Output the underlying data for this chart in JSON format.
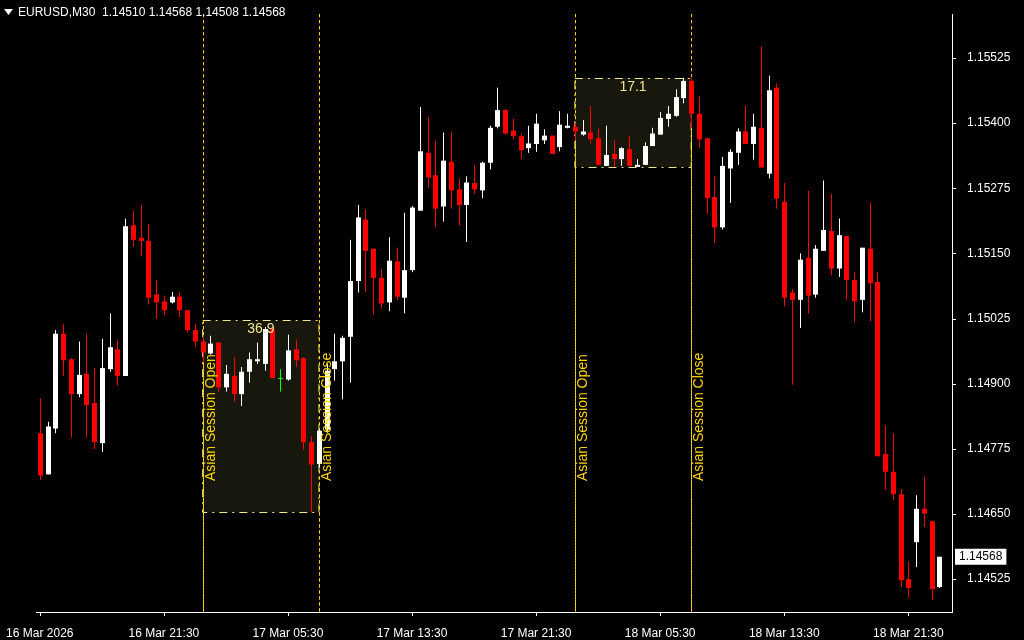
{
  "chart_data": {
    "type": "candlestick",
    "title": "EURUSD,M30  1.14510 1.14568 1.14508 1.14568",
    "x": [
      "2026-03-16T13:30",
      "2026-03-16T14:00",
      "2026-03-16T14:30",
      "2026-03-16T15:00",
      "2026-03-16T15:30",
      "2026-03-16T16:00",
      "2026-03-16T16:30",
      "2026-03-16T17:00",
      "2026-03-16T17:30",
      "2026-03-16T18:00",
      "2026-03-16T18:30",
      "2026-03-16T19:00",
      "2026-03-16T19:30",
      "2026-03-16T20:00",
      "2026-03-16T20:30",
      "2026-03-16T21:00",
      "2026-03-16T21:30",
      "2026-03-16T22:00",
      "2026-03-16T22:30",
      "2026-03-16T23:00",
      "2026-03-16T23:30",
      "2026-03-17T00:00",
      "2026-03-17T00:30",
      "2026-03-17T01:00",
      "2026-03-17T01:30",
      "2026-03-17T02:00",
      "2026-03-17T02:30",
      "2026-03-17T03:00",
      "2026-03-17T03:30",
      "2026-03-17T04:00",
      "2026-03-17T04:30",
      "2026-03-17T05:00",
      "2026-03-17T05:30",
      "2026-03-17T06:00",
      "2026-03-17T06:30",
      "2026-03-17T07:00",
      "2026-03-17T07:30",
      "2026-03-17T08:00",
      "2026-03-17T08:30",
      "2026-03-17T09:00",
      "2026-03-17T09:30",
      "2026-03-17T10:00",
      "2026-03-17T10:30",
      "2026-03-17T11:00",
      "2026-03-17T11:30",
      "2026-03-17T12:00",
      "2026-03-17T12:30",
      "2026-03-17T13:00",
      "2026-03-17T13:30",
      "2026-03-17T14:00",
      "2026-03-17T14:30",
      "2026-03-17T15:00",
      "2026-03-17T15:30",
      "2026-03-17T16:00",
      "2026-03-17T16:30",
      "2026-03-17T17:00",
      "2026-03-17T17:30",
      "2026-03-17T18:00",
      "2026-03-17T18:30",
      "2026-03-17T19:00",
      "2026-03-17T19:30",
      "2026-03-17T20:00",
      "2026-03-17T20:30",
      "2026-03-17T21:00",
      "2026-03-17T21:30",
      "2026-03-17T22:00",
      "2026-03-17T22:30",
      "2026-03-17T23:00",
      "2026-03-17T23:30",
      "2026-03-18T00:00",
      "2026-03-18T00:30",
      "2026-03-18T01:00",
      "2026-03-18T01:30",
      "2026-03-18T02:00",
      "2026-03-18T02:30",
      "2026-03-18T03:00",
      "2026-03-18T03:30",
      "2026-03-18T04:00",
      "2026-03-18T04:30",
      "2026-03-18T05:00",
      "2026-03-18T05:30",
      "2026-03-18T06:00",
      "2026-03-18T06:30",
      "2026-03-18T07:00",
      "2026-03-18T07:30",
      "2026-03-18T08:00",
      "2026-03-18T08:30",
      "2026-03-18T09:00",
      "2026-03-18T09:30",
      "2026-03-18T10:00",
      "2026-03-18T10:30",
      "2026-03-18T11:00",
      "2026-03-18T11:30",
      "2026-03-18T12:00",
      "2026-03-18T12:30",
      "2026-03-18T13:00",
      "2026-03-18T13:30",
      "2026-03-18T14:00",
      "2026-03-18T14:30",
      "2026-03-18T15:00",
      "2026-03-18T15:30",
      "2026-03-18T16:00",
      "2026-03-18T16:30",
      "2026-03-18T17:00",
      "2026-03-18T17:30",
      "2026-03-18T18:00",
      "2026-03-18T18:30",
      "2026-03-18T19:00",
      "2026-03-18T19:30",
      "2026-03-18T20:00",
      "2026-03-18T20:30",
      "2026-03-18T21:00",
      "2026-03-18T21:30",
      "2026-03-18T22:00",
      "2026-03-18T22:30",
      "2026-03-18T23:00",
      "2026-03-18T23:30"
    ],
    "ohlc": [
      [
        1.14805,
        1.14872,
        1.14715,
        1.14724
      ],
      [
        1.14726,
        1.14827,
        1.14726,
        1.14818
      ],
      [
        1.14814,
        1.15003,
        1.14805,
        1.14996
      ],
      [
        1.14996,
        1.15015,
        1.14915,
        1.14945
      ],
      [
        1.14947,
        1.14949,
        1.14797,
        1.1488
      ],
      [
        1.1488,
        1.14981,
        1.14874,
        1.14917
      ],
      [
        1.14919,
        1.14996,
        1.14797,
        1.14859
      ],
      [
        1.14863,
        1.1493,
        1.14775,
        1.14788
      ],
      [
        1.14786,
        1.14986,
        1.14769,
        1.1493
      ],
      [
        1.14928,
        1.15035,
        1.14923,
        1.1497
      ],
      [
        1.14966,
        1.14983,
        1.14896,
        1.14915
      ],
      [
        1.14915,
        1.15217,
        1.14915,
        1.15202
      ],
      [
        1.15204,
        1.15232,
        1.15163,
        1.15176
      ],
      [
        1.1518,
        1.15243,
        1.15144,
        1.15174
      ],
      [
        1.15174,
        1.15206,
        1.15052,
        1.15065
      ],
      [
        1.15071,
        1.15099,
        1.15024,
        1.15056
      ],
      [
        1.15058,
        1.15069,
        1.15031,
        1.15041
      ],
      [
        1.15056,
        1.15076,
        1.15054,
        1.15067
      ],
      [
        1.15067,
        1.15076,
        1.15028,
        1.15041
      ],
      [
        1.15041,
        1.15041,
        1.14998,
        1.15003
      ],
      [
        1.15003,
        1.15015,
        1.14971,
        1.14981
      ],
      [
        1.14981,
        1.1499,
        1.14941,
        1.1496
      ],
      [
        1.14958,
        1.14992,
        1.14956,
        1.14977
      ],
      [
        1.14979,
        1.14979,
        1.14885,
        1.14893
      ],
      [
        1.14893,
        1.14936,
        1.14885,
        1.14919
      ],
      [
        1.14915,
        1.14951,
        1.14865,
        1.1488
      ],
      [
        1.1488,
        1.14932,
        1.14857,
        1.14923
      ],
      [
        1.14923,
        1.1496,
        1.14902,
        1.14947
      ],
      [
        1.14943,
        1.14979,
        1.14938,
        1.14947
      ],
      [
        1.14938,
        1.15009,
        1.14925,
        1.15005
      ],
      [
        1.15005,
        1.15007,
        1.14911,
        1.14911
      ],
      [
        1.14911,
        1.14928,
        1.14885,
        1.14911
      ],
      [
        1.14908,
        1.14994,
        1.14906,
        1.14964
      ],
      [
        1.14966,
        1.14985,
        1.14932,
        1.14945
      ],
      [
        1.14949,
        1.14951,
        1.14773,
        1.14788
      ],
      [
        1.14788,
        1.14799,
        1.14653,
        1.14745
      ],
      [
        1.14746,
        1.14812,
        1.14739,
        1.1481
      ],
      [
        1.14812,
        1.14938,
        1.14806,
        1.14925
      ],
      [
        1.14928,
        1.14996,
        1.14906,
        1.14943
      ],
      [
        1.14943,
        1.14992,
        1.1487,
        1.14988
      ],
      [
        1.1499,
        1.15176,
        1.14902,
        1.15097
      ],
      [
        1.15097,
        1.15243,
        1.15075,
        1.15219
      ],
      [
        1.15215,
        1.15234,
        1.15076,
        1.15155
      ],
      [
        1.15159,
        1.15159,
        1.15033,
        1.15103
      ],
      [
        1.15103,
        1.1512,
        1.15046,
        1.15054
      ],
      [
        1.15056,
        1.15181,
        1.15039,
        1.15136
      ],
      [
        1.15135,
        1.15161,
        1.1506,
        1.15067
      ],
      [
        1.15065,
        1.15228,
        1.15035,
        1.15118
      ],
      [
        1.15118,
        1.15241,
        1.15114,
        1.15238
      ],
      [
        1.15232,
        1.15431,
        1.15232,
        1.15346
      ],
      [
        1.15343,
        1.15412,
        1.15275,
        1.15296
      ],
      [
        1.153,
        1.15367,
        1.152,
        1.15236
      ],
      [
        1.1524,
        1.15382,
        1.15211,
        1.15328
      ],
      [
        1.15326,
        1.15384,
        1.15236,
        1.15271
      ],
      [
        1.15273,
        1.15294,
        1.15204,
        1.15243
      ],
      [
        1.15243,
        1.15298,
        1.15172,
        1.15286
      ],
      [
        1.15285,
        1.1532,
        1.15264,
        1.15273
      ],
      [
        1.15271,
        1.15326,
        1.15256,
        1.15324
      ],
      [
        1.15324,
        1.15395,
        1.15311,
        1.15391
      ],
      [
        1.15393,
        1.15468,
        1.1539,
        1.15425
      ],
      [
        1.15425,
        1.15427,
        1.15378,
        1.1538
      ],
      [
        1.15386,
        1.15408,
        1.15369,
        1.15375
      ],
      [
        1.15375,
        1.1538,
        1.15331,
        1.15348
      ],
      [
        1.15352,
        1.15395,
        1.15343,
        1.15361
      ],
      [
        1.1536,
        1.15418,
        1.15345,
        1.15399
      ],
      [
        1.15367,
        1.15388,
        1.1536,
        1.15376
      ],
      [
        1.15376,
        1.15376,
        1.15341,
        1.15341
      ],
      [
        1.15354,
        1.15423,
        1.15346,
        1.15397
      ],
      [
        1.15391,
        1.15418,
        1.1539,
        1.15395
      ],
      [
        1.15393,
        1.15401,
        1.15367,
        1.15384
      ],
      [
        1.15378,
        1.15406,
        1.15376,
        1.15384
      ],
      [
        1.15382,
        1.15433,
        1.15361,
        1.15369
      ],
      [
        1.15371,
        1.1539,
        1.1532,
        1.1532
      ],
      [
        1.15318,
        1.15395,
        1.15318,
        1.15339
      ],
      [
        1.15341,
        1.15367,
        1.15316,
        1.15331
      ],
      [
        1.15331,
        1.15354,
        1.15318,
        1.15352
      ],
      [
        1.1535,
        1.15376,
        1.15318,
        1.15318
      ],
      [
        1.15316,
        1.15331,
        1.15316,
        1.1532
      ],
      [
        1.1532,
        1.15363,
        1.1532,
        1.15356
      ],
      [
        1.15356,
        1.15391,
        1.15356,
        1.1538
      ],
      [
        1.15378,
        1.15421,
        1.15378,
        1.1541
      ],
      [
        1.15408,
        1.15433,
        1.15393,
        1.15418
      ],
      [
        1.15414,
        1.15465,
        1.15412,
        1.1545
      ],
      [
        1.15448,
        1.15487,
        1.15438,
        1.15481
      ],
      [
        1.15481,
        1.15487,
        1.1539,
        1.15418
      ],
      [
        1.15418,
        1.15451,
        1.15352,
        1.15369
      ],
      [
        1.15371,
        1.15371,
        1.15226,
        1.15256
      ],
      [
        1.15258,
        1.15298,
        1.1517,
        1.152
      ],
      [
        1.152,
        1.15335,
        1.15196,
        1.15318
      ],
      [
        1.15313,
        1.1535,
        1.15247,
        1.15345
      ],
      [
        1.15343,
        1.1539,
        1.1532,
        1.15384
      ],
      [
        1.15384,
        1.15433,
        1.1536,
        1.1536
      ],
      [
        1.1536,
        1.15418,
        1.1533,
        1.15393
      ],
      [
        1.15391,
        1.15547,
        1.15315,
        1.15315
      ],
      [
        1.15303,
        1.15491,
        1.15294,
        1.15463
      ],
      [
        1.15468,
        1.15476,
        1.15236,
        1.15255
      ],
      [
        1.15249,
        1.15285,
        1.15048,
        1.15065
      ],
      [
        1.15075,
        1.15082,
        1.14898,
        1.15061
      ],
      [
        1.15061,
        1.1515,
        1.15007,
        1.15138
      ],
      [
        1.15142,
        1.1527,
        1.15035,
        1.15069
      ],
      [
        1.15071,
        1.15166,
        1.15065,
        1.15159
      ],
      [
        1.15155,
        1.1529,
        1.15155,
        1.15195
      ],
      [
        1.15193,
        1.15264,
        1.15108,
        1.15121
      ],
      [
        1.15121,
        1.15217,
        1.15105,
        1.15185
      ],
      [
        1.15183,
        1.15183,
        1.15061,
        1.15099
      ],
      [
        1.15099,
        1.15114,
        1.15018,
        1.15058
      ],
      [
        1.15061,
        1.15161,
        1.15037,
        1.15161
      ],
      [
        1.15159,
        1.15247,
        1.1502,
        1.15093
      ],
      [
        1.15095,
        1.15114,
        1.14761,
        1.14761
      ],
      [
        1.14765,
        1.1482,
        1.14696,
        1.14731
      ],
      [
        1.14731,
        1.14805,
        1.14677,
        1.14688
      ],
      [
        1.14688,
        1.14698,
        1.1451,
        1.14523
      ],
      [
        1.14525,
        1.14559,
        1.1449,
        1.14508
      ],
      [
        1.14596,
        1.14686,
        1.14548,
        1.1466
      ],
      [
        1.1466,
        1.14722,
        1.14625,
        1.14651
      ],
      [
        1.14636,
        1.14636,
        1.14486,
        1.14506
      ],
      [
        1.1451,
        1.14568,
        1.14508,
        1.14568
      ]
    ],
    "colors": [
      "#ff0000",
      "#ffffff",
      "#ffffff",
      "#ff0000",
      "#ff0000",
      "#ffffff",
      "#ff0000",
      "#ff0000",
      "#ffffff",
      "#ffffff",
      "#ff0000",
      "#ffffff",
      "#ff0000",
      "#ff0000",
      "#ff0000",
      "#ff0000",
      "#ff0000",
      "#ffffff",
      "#ff0000",
      "#ff0000",
      "#ff0000",
      "#ff0000",
      "#ffffff",
      "#ff0000",
      "#ffffff",
      "#ff0000",
      "#ffffff",
      "#ffffff",
      "#ffffff",
      "#ffffff",
      "#ff0000",
      "#00ff00",
      "#ffffff",
      "#ff0000",
      "#ff0000",
      "#ff0000",
      "#ffffff",
      "#ffffff",
      "#ffffff",
      "#ffffff",
      "#ffffff",
      "#ffffff",
      "#ff0000",
      "#ff0000",
      "#ff0000",
      "#ffffff",
      "#ff0000",
      "#ffffff",
      "#ffffff",
      "#ffffff",
      "#ff0000",
      "#ff0000",
      "#ffffff",
      "#ff0000",
      "#ff0000",
      "#ffffff",
      "#ff0000",
      "#ffffff",
      "#ffffff",
      "#ffffff",
      "#ff0000",
      "#ff0000",
      "#ff0000",
      "#ffffff",
      "#ffffff",
      "#ffffff",
      "#ff0000",
      "#ffffff",
      "#ffffff",
      "#ff0000",
      "#ffffff",
      "#ff0000",
      "#ff0000",
      "#ffffff",
      "#ff0000",
      "#ffffff",
      "#ff0000",
      "#ffffff",
      "#ffffff",
      "#ffffff",
      "#ffffff",
      "#ffffff",
      "#ffffff",
      "#ffffff",
      "#ff0000",
      "#ff0000",
      "#ff0000",
      "#ff0000",
      "#ffffff",
      "#ffffff",
      "#ffffff",
      "#ff0000",
      "#ffffff",
      "#ff0000",
      "#ffffff",
      "#ff0000",
      "#ff0000",
      "#ff0000",
      "#ffffff",
      "#ff0000",
      "#ffffff",
      "#ffffff",
      "#ff0000",
      "#ffffff",
      "#ff0000",
      "#ff0000",
      "#ffffff",
      "#ff0000",
      "#ff0000",
      "#ff0000",
      "#ff0000",
      "#ff0000",
      "#ff0000",
      "#ffffff",
      "#ff0000",
      "#ff0000",
      "#ffffff"
    ],
    "xlim": [
      "2026-03-16T13:19",
      "2026-03-19T00:19"
    ],
    "xticks": [
      {
        "value": "2026-03-16T13:30",
        "label": "16 Mar 2026"
      },
      {
        "value": "2026-03-16T21:30",
        "label": "16 Mar 21:30"
      },
      {
        "value": "2026-03-17T05:30",
        "label": "17 Mar 05:30"
      },
      {
        "value": "2026-03-17T13:30",
        "label": "17 Mar 13:30"
      },
      {
        "value": "2026-03-17T21:30",
        "label": "17 Mar 21:30"
      },
      {
        "value": "2026-03-18T05:30",
        "label": "18 Mar 05:30"
      },
      {
        "value": "2026-03-18T13:30",
        "label": "18 Mar 13:30"
      },
      {
        "value": "2026-03-18T21:30",
        "label": "18 Mar 21:30"
      }
    ],
    "ylim": [
      1.14462,
      1.15609
    ],
    "yticks": [
      1.14525,
      {
        "value": 1.1465,
        "label": "1.14650"
      },
      1.14775,
      {
        "value": 1.149,
        "label": "1.14900"
      },
      1.15025,
      {
        "value": 1.1515,
        "label": "1.15150"
      },
      1.15275,
      {
        "value": 1.154,
        "label": "1.15400"
      },
      1.15525
    ],
    "ref_lines": [
      {
        "axis": "x",
        "value": "2026-03-17T00:00",
        "label": "Asian Session Open",
        "color": "#ffd700",
        "line_style": "dotted"
      },
      {
        "axis": "x",
        "value": "2026-03-17T07:30",
        "label": "Asian Session Close",
        "color": "#ffd700",
        "line_style": "dotted"
      },
      {
        "axis": "x",
        "value": "2026-03-18T00:00",
        "label": "Asian Session Open",
        "color": "#ffd700",
        "line_style": "dotted"
      },
      {
        "axis": "x",
        "value": "2026-03-18T07:30",
        "label": "Asian Session Close",
        "color": "#ffd700",
        "line_style": "dotted"
      }
    ],
    "bands": [
      {
        "axis": "y",
        "from": 1.14653,
        "to": 1.15022,
        "label": "36.9",
        "color": "#f0e68c"
      },
      {
        "axis": "y",
        "from": 1.15316,
        "to": 1.15487,
        "label": "17.1",
        "color": "#f0e68c"
      }
    ],
    "annotations": [
      "1.14568"
    ]
  }
}
